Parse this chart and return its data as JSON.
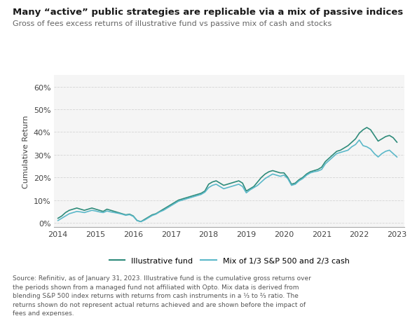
{
  "title": "Many “active” public strategies are replicable via a mix of passive indices",
  "subtitle": "Gross of fees excess returns of illustrative fund vs passive mix of cash and stocks",
  "ylabel": "Cumulative Return",
  "ylim": [
    -0.02,
    0.65
  ],
  "yticks": [
    0.0,
    0.1,
    0.2,
    0.3,
    0.4,
    0.5,
    0.6
  ],
  "ytick_labels": [
    "0%",
    "10%",
    "20%",
    "30%",
    "40%",
    "50%",
    "60%"
  ],
  "xlim": [
    2013.9,
    2023.2
  ],
  "xticks": [
    2014,
    2015,
    2016,
    2017,
    2018,
    2019,
    2020,
    2021,
    2022,
    2023
  ],
  "legend_labels": [
    "Illustrative fund",
    "Mix of 1/3 S&P 500 and 2/3 cash"
  ],
  "line1_color": "#2e8b7a",
  "line2_color": "#5bb8c9",
  "background_color": "#f5f5f5",
  "grid_color": "#cccccc",
  "footnote": "Source: Refinitiv, as of January 31, 2023. Illustrative fund is the cumulative gross returns over\nthe periods shown from a managed fund not affiliated with Opto. Mix data is derived from\nblending S&P 500 index returns with returns from cash instruments in a ⅓ to ⅔ ratio. The\nreturns shown do not represent actual returns achieved and are shown before the impact of\nfees and expenses.",
  "line1_x": [
    2014.0,
    2014.1,
    2014.2,
    2014.3,
    2014.4,
    2014.5,
    2014.6,
    2014.7,
    2014.8,
    2014.9,
    2015.0,
    2015.1,
    2015.2,
    2015.3,
    2015.4,
    2015.5,
    2015.6,
    2015.7,
    2015.8,
    2015.9,
    2016.0,
    2016.1,
    2016.2,
    2016.3,
    2016.4,
    2016.5,
    2016.6,
    2016.7,
    2016.8,
    2016.9,
    2017.0,
    2017.1,
    2017.2,
    2017.3,
    2017.4,
    2017.5,
    2017.6,
    2017.7,
    2017.8,
    2017.9,
    2018.0,
    2018.1,
    2018.2,
    2018.3,
    2018.4,
    2018.5,
    2018.6,
    2018.7,
    2018.8,
    2018.9,
    2019.0,
    2019.1,
    2019.2,
    2019.3,
    2019.4,
    2019.5,
    2019.6,
    2019.7,
    2019.8,
    2019.9,
    2020.0,
    2020.1,
    2020.2,
    2020.3,
    2020.4,
    2020.5,
    2020.6,
    2020.7,
    2020.8,
    2020.9,
    2021.0,
    2021.1,
    2021.2,
    2021.3,
    2021.4,
    2021.5,
    2021.6,
    2021.7,
    2021.8,
    2021.9,
    2022.0,
    2022.1,
    2022.2,
    2022.3,
    2022.4,
    2022.5,
    2022.6,
    2022.7,
    2022.8,
    2022.9,
    2023.0
  ],
  "line1_y": [
    0.02,
    0.03,
    0.045,
    0.055,
    0.06,
    0.065,
    0.06,
    0.055,
    0.06,
    0.065,
    0.06,
    0.055,
    0.05,
    0.06,
    0.055,
    0.05,
    0.045,
    0.04,
    0.035,
    0.038,
    0.03,
    0.01,
    0.005,
    0.015,
    0.025,
    0.035,
    0.04,
    0.05,
    0.06,
    0.07,
    0.08,
    0.09,
    0.1,
    0.105,
    0.11,
    0.115,
    0.12,
    0.125,
    0.13,
    0.14,
    0.17,
    0.18,
    0.185,
    0.175,
    0.165,
    0.17,
    0.175,
    0.18,
    0.185,
    0.175,
    0.14,
    0.15,
    0.16,
    0.18,
    0.2,
    0.215,
    0.225,
    0.23,
    0.225,
    0.22,
    0.22,
    0.2,
    0.17,
    0.175,
    0.19,
    0.2,
    0.215,
    0.225,
    0.23,
    0.235,
    0.245,
    0.27,
    0.285,
    0.3,
    0.315,
    0.32,
    0.33,
    0.34,
    0.355,
    0.37,
    0.395,
    0.41,
    0.42,
    0.41,
    0.385,
    0.36,
    0.37,
    0.38,
    0.385,
    0.375,
    0.355
  ],
  "line2_x": [
    2014.0,
    2014.1,
    2014.2,
    2014.3,
    2014.4,
    2014.5,
    2014.6,
    2014.7,
    2014.8,
    2014.9,
    2015.0,
    2015.1,
    2015.2,
    2015.3,
    2015.4,
    2015.5,
    2015.6,
    2015.7,
    2015.8,
    2015.9,
    2016.0,
    2016.1,
    2016.2,
    2016.3,
    2016.4,
    2016.5,
    2016.6,
    2016.7,
    2016.8,
    2016.9,
    2017.0,
    2017.1,
    2017.2,
    2017.3,
    2017.4,
    2017.5,
    2017.6,
    2017.7,
    2017.8,
    2017.9,
    2018.0,
    2018.1,
    2018.2,
    2018.3,
    2018.4,
    2018.5,
    2018.6,
    2018.7,
    2018.8,
    2018.9,
    2019.0,
    2019.1,
    2019.2,
    2019.3,
    2019.4,
    2019.5,
    2019.6,
    2019.7,
    2019.8,
    2019.9,
    2020.0,
    2020.1,
    2020.2,
    2020.3,
    2020.4,
    2020.5,
    2020.6,
    2020.7,
    2020.8,
    2020.9,
    2021.0,
    2021.1,
    2021.2,
    2021.3,
    2021.4,
    2021.5,
    2021.6,
    2021.7,
    2021.8,
    2021.9,
    2022.0,
    2022.1,
    2022.2,
    2022.3,
    2022.4,
    2022.5,
    2022.6,
    2022.7,
    2022.8,
    2022.9,
    2023.0
  ],
  "line2_y": [
    0.01,
    0.02,
    0.03,
    0.04,
    0.045,
    0.05,
    0.048,
    0.045,
    0.05,
    0.055,
    0.052,
    0.048,
    0.045,
    0.052,
    0.048,
    0.045,
    0.042,
    0.038,
    0.033,
    0.036,
    0.028,
    0.01,
    0.005,
    0.012,
    0.022,
    0.032,
    0.038,
    0.048,
    0.055,
    0.065,
    0.075,
    0.085,
    0.095,
    0.1,
    0.105,
    0.11,
    0.115,
    0.12,
    0.125,
    0.135,
    0.155,
    0.165,
    0.17,
    0.16,
    0.15,
    0.155,
    0.16,
    0.165,
    0.17,
    0.16,
    0.132,
    0.145,
    0.155,
    0.165,
    0.18,
    0.195,
    0.205,
    0.215,
    0.21,
    0.205,
    0.21,
    0.195,
    0.165,
    0.17,
    0.185,
    0.195,
    0.21,
    0.22,
    0.225,
    0.228,
    0.235,
    0.26,
    0.275,
    0.29,
    0.305,
    0.31,
    0.315,
    0.32,
    0.335,
    0.345,
    0.365,
    0.34,
    0.335,
    0.325,
    0.305,
    0.29,
    0.305,
    0.315,
    0.32,
    0.305,
    0.29
  ]
}
